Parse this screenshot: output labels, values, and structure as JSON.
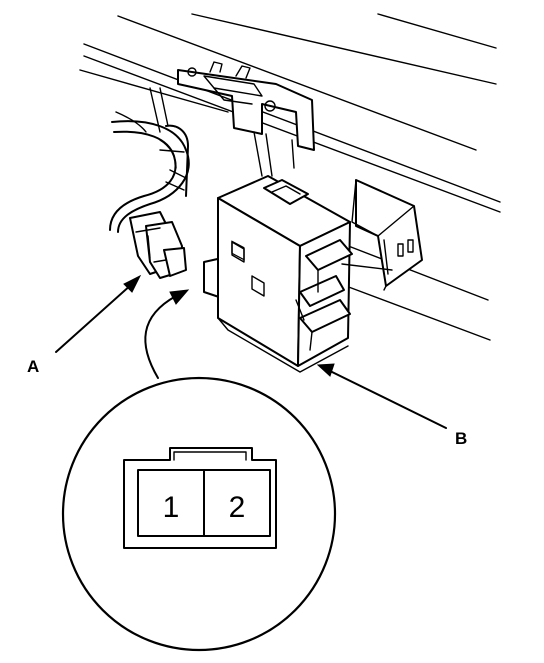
{
  "labels": {
    "callout_a": "A",
    "callout_b": "B",
    "pin_1": "1",
    "pin_2": "2"
  },
  "colors": {
    "line": "#000000",
    "background": "#ffffff"
  }
}
